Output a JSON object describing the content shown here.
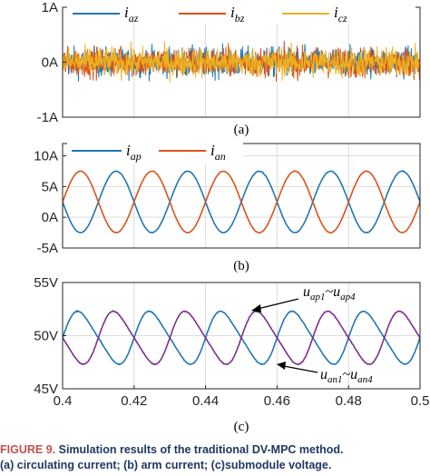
{
  "chart_data": [
    {
      "type": "line",
      "panel_label": "(a)",
      "ylim": [
        -1,
        1
      ],
      "y_ticks": [
        {
          "value": 1,
          "label": "1A"
        },
        {
          "value": 0,
          "label": "0A"
        },
        {
          "value": -1,
          "label": "-1A"
        }
      ],
      "x_range": [
        0.4,
        0.5
      ],
      "grid": true,
      "legend_position": "top",
      "series": [
        {
          "name": "i",
          "sub": "az",
          "color": "#1f77b4",
          "amplitude": 0.33
        },
        {
          "name": "i",
          "sub": "bz",
          "color": "#d95319",
          "amplitude": 0.33
        },
        {
          "name": "i",
          "sub": "cz",
          "color": "#edb120",
          "amplitude": 0.33
        }
      ]
    },
    {
      "type": "line",
      "panel_label": "(b)",
      "ylim": [
        -5,
        12
      ],
      "y_ticks": [
        {
          "value": 10,
          "label": "10A"
        },
        {
          "value": 5,
          "label": "5A"
        },
        {
          "value": 0,
          "label": "0A"
        },
        {
          "value": -5,
          "label": "-5A"
        }
      ],
      "x_range": [
        0.4,
        0.5
      ],
      "grid": true,
      "legend_position": "top-left",
      "series": [
        {
          "name": "i",
          "sub": "ap",
          "color": "#1f77b4",
          "offset": 2.5,
          "amplitude": 5.0,
          "frequency_hz": 50,
          "phase_deg": 180
        },
        {
          "name": "i",
          "sub": "an",
          "color": "#d95319",
          "offset": 2.5,
          "amplitude": 5.0,
          "frequency_hz": 50,
          "phase_deg": 0
        }
      ]
    },
    {
      "type": "line",
      "panel_label": "(c)",
      "ylim": [
        45,
        55
      ],
      "y_ticks": [
        {
          "value": 55,
          "label": "55V"
        },
        {
          "value": 50,
          "label": "50V"
        },
        {
          "value": 45,
          "label": "45V"
        }
      ],
      "x_range": [
        0.4,
        0.5
      ],
      "x_ticks": [
        {
          "value": 0.4,
          "label": "0.4"
        },
        {
          "value": 0.42,
          "label": "0.42"
        },
        {
          "value": 0.44,
          "label": "0.44"
        },
        {
          "value": 0.46,
          "label": "0.46"
        },
        {
          "value": 0.48,
          "label": "0.48"
        },
        {
          "value": 0.5,
          "label": "0.5"
        }
      ],
      "grid": true,
      "annotations": [
        {
          "main": "u",
          "sub1": "ap1",
          "mid": "~u",
          "sub2": "ap4"
        },
        {
          "main": "u",
          "sub1": "an1",
          "mid": "~u",
          "sub2": "an4"
        }
      ],
      "series": [
        {
          "name": "u_ap",
          "color": "#1f77b4",
          "offset": 49.8,
          "amplitude": 2.4,
          "frequency_hz": 50,
          "phase_deg": 0
        },
        {
          "name": "u_an",
          "color": "#7e2f8e",
          "offset": 49.8,
          "amplitude": 2.4,
          "frequency_hz": 50,
          "phase_deg": 180
        }
      ]
    }
  ],
  "caption": {
    "figure_number": "FIGURE 9.",
    "line1": "Simulation results of the traditional DV-MPC method.",
    "line2": "(a) circulating current; (b) arm current; (c)submodule voltage."
  }
}
